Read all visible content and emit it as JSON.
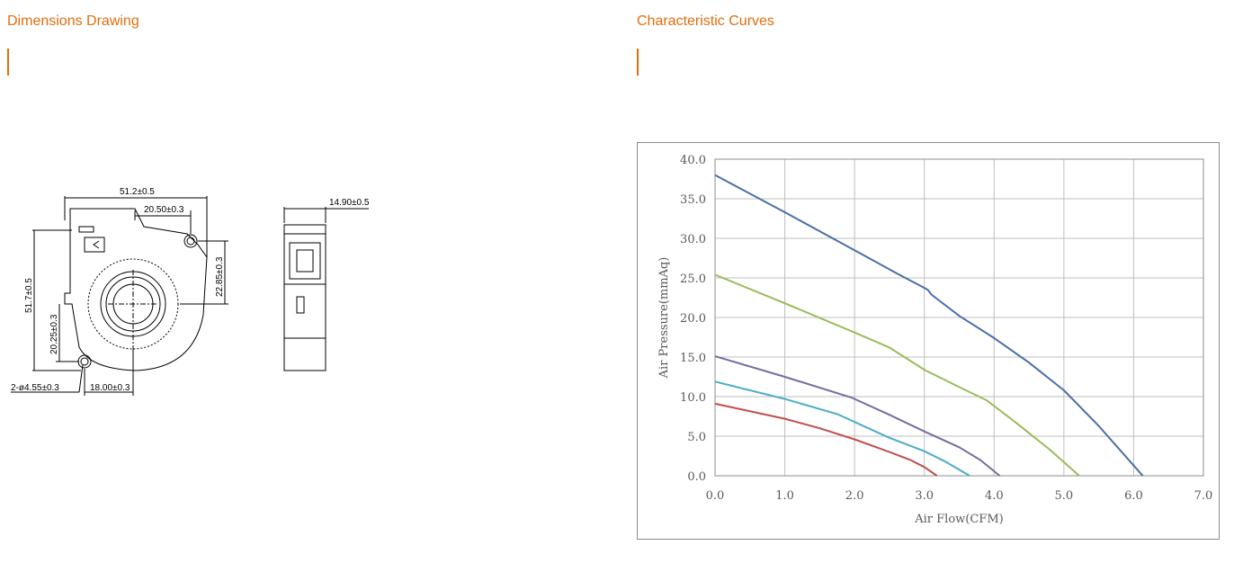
{
  "sections": {
    "drawing_title": "Dimensions Drawing",
    "curves_title": "Characteristic Curves"
  },
  "colors": {
    "accent": "#e36c0a"
  },
  "drawing": {
    "dims": {
      "width": "51.2±0.5",
      "hole_offset_top": "20.50±0.3",
      "depth": "14.90±0.5",
      "height": "51.7±0.5",
      "hole_spacing_right": "22.85±0.3",
      "hole_height_left": "20.25±0.3",
      "hole_spacing_bottom": "18.00±0.3",
      "holes": "2-ø4.55±0.3"
    }
  },
  "chart_data": {
    "type": "line",
    "xlabel": "Air Flow(CFM)",
    "ylabel": "Air Pressure(mmAq)",
    "xlim": [
      0,
      7
    ],
    "ylim": [
      0,
      40
    ],
    "x_ticks": [
      "0.0",
      "1.0",
      "2.0",
      "3.0",
      "4.0",
      "5.0",
      "6.0",
      "7.0"
    ],
    "y_ticks": [
      "0.0",
      "5.0",
      "10.0",
      "15.0",
      "20.0",
      "25.0",
      "30.0",
      "35.0",
      "40.0"
    ],
    "grid": true,
    "series": [
      {
        "color": "#4a6fa5",
        "points": [
          [
            0,
            38
          ],
          [
            1,
            33.3
          ],
          [
            2,
            28.5
          ],
          [
            2.6,
            25.6
          ],
          [
            3.05,
            23.5
          ],
          [
            3.1,
            22.9
          ],
          [
            3.5,
            20.2
          ],
          [
            4.0,
            17.4
          ],
          [
            4.5,
            14.3
          ],
          [
            5.0,
            10.8
          ],
          [
            5.5,
            6.3
          ],
          [
            5.9,
            2.3
          ],
          [
            6.13,
            0
          ]
        ]
      },
      {
        "color": "#9bbb59",
        "points": [
          [
            0,
            25.4
          ],
          [
            1,
            21.8
          ],
          [
            2,
            18.1
          ],
          [
            2.5,
            16.2
          ],
          [
            3.0,
            13.4
          ],
          [
            3.5,
            11.2
          ],
          [
            3.9,
            9.5
          ],
          [
            4.3,
            6.8
          ],
          [
            4.8,
            3.3
          ],
          [
            5.22,
            0
          ]
        ]
      },
      {
        "color": "#7a6aa0",
        "points": [
          [
            0,
            15.1
          ],
          [
            1,
            12.5
          ],
          [
            1.95,
            9.9
          ],
          [
            2.5,
            7.7
          ],
          [
            3.0,
            5.6
          ],
          [
            3.5,
            3.6
          ],
          [
            3.8,
            2.0
          ],
          [
            4.08,
            0
          ]
        ]
      },
      {
        "color": "#4bacc6",
        "points": [
          [
            0,
            11.9
          ],
          [
            1,
            9.7
          ],
          [
            1.75,
            7.8
          ],
          [
            2.5,
            4.8
          ],
          [
            3.0,
            3.1
          ],
          [
            3.3,
            1.8
          ],
          [
            3.65,
            0
          ]
        ]
      },
      {
        "color": "#c0504d",
        "points": [
          [
            0,
            9.1
          ],
          [
            1,
            7.2
          ],
          [
            1.5,
            6.0
          ],
          [
            2.0,
            4.6
          ],
          [
            2.5,
            3.0
          ],
          [
            2.8,
            2.0
          ],
          [
            3.0,
            1.1
          ],
          [
            3.18,
            0
          ]
        ]
      }
    ]
  }
}
